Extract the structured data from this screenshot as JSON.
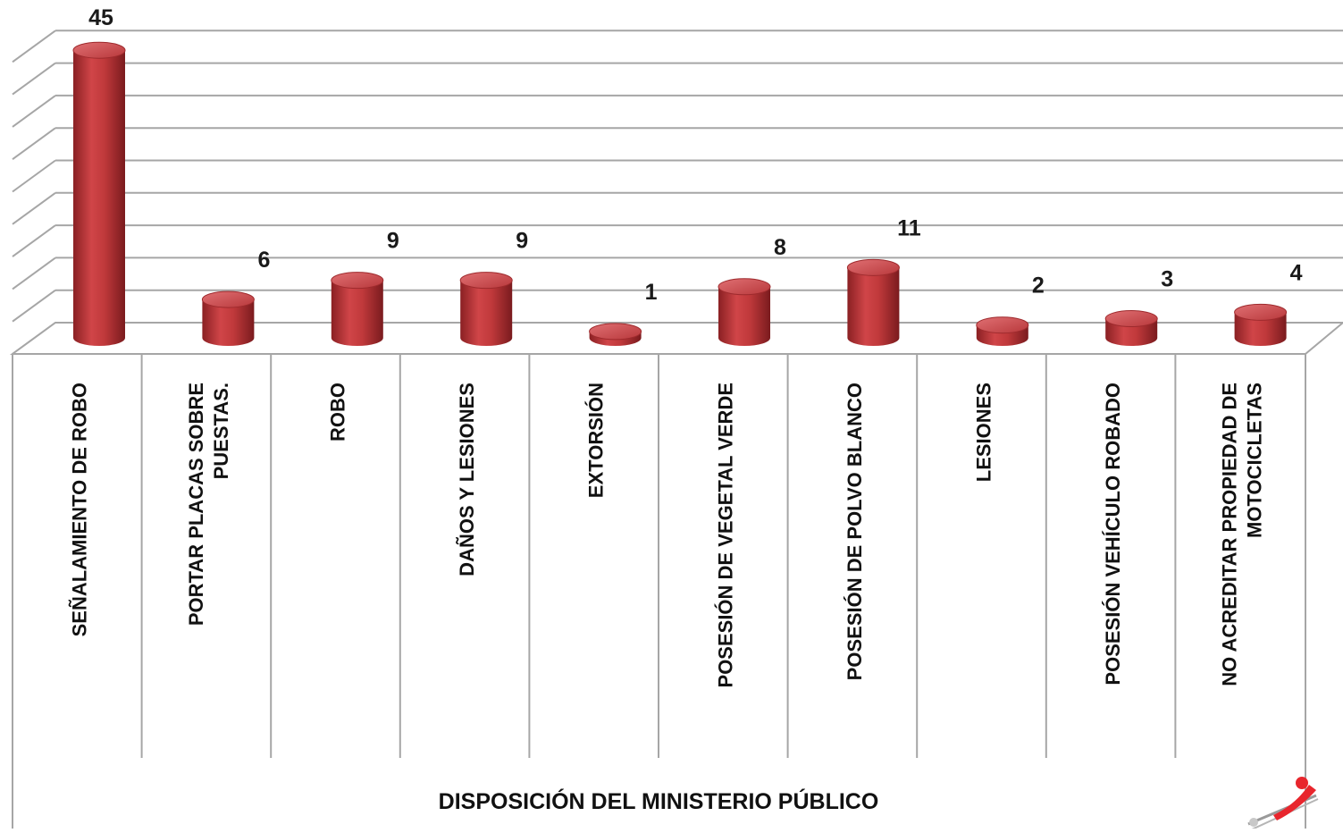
{
  "chart_data": {
    "type": "bar",
    "categories": [
      [
        "SEÑALAMIENTO DE ROBO"
      ],
      [
        "PORTAR PLACAS SOBRE",
        "PUESTAS."
      ],
      [
        "ROBO"
      ],
      [
        "DAÑOS Y LESIONES"
      ],
      [
        "EXTORSIÓN"
      ],
      [
        "POSESIÓN DE VEGETAL VERDE"
      ],
      [
        "POSESIÓN DE POLVO BLANCO"
      ],
      [
        "LESIONES"
      ],
      [
        "POSESIÓN VEHÍCULO ROBADO"
      ],
      [
        "NO ACREDITAR PROPIEDAD DE",
        "MOTOCICLETAS"
      ]
    ],
    "values": [
      45,
      6,
      9,
      9,
      1,
      8,
      11,
      2,
      3,
      4
    ],
    "title": "",
    "xlabel": "DISPOSICIÓN DEL MINISTERIO  PÚBLICO",
    "ylabel": "",
    "ylim": [
      0,
      45
    ],
    "grid": true,
    "bar_style": "3d-cylinder",
    "colors": {
      "bar": "#c0393b",
      "bar_dark": "#7e1c1f",
      "bar_light": "#e2777a",
      "grid": "#a6a6a6"
    }
  },
  "logo": {
    "name": "logo-icon",
    "colors": [
      "#e8262d",
      "#9a9a9a"
    ]
  }
}
